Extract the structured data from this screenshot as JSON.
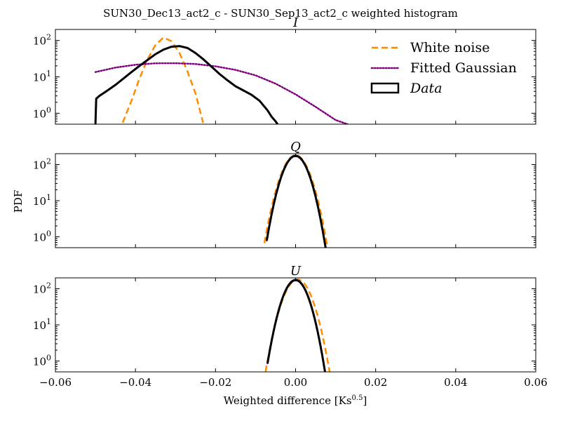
{
  "figure": {
    "suptitle": "SUN30_Dec13_act2_c - SUN30_Sep13_act2_c weighted histogram",
    "ylabel": "PDF",
    "xlabel_prefix": "Weighted difference [Ks",
    "xlabel_exp": "0.5",
    "xlabel_suffix": "]"
  },
  "legend": {
    "items": [
      {
        "label": "White noise",
        "style": "dashed",
        "color": "#ff8c00"
      },
      {
        "label": "Fitted Gaussian",
        "style": "dotted",
        "color": "#800080"
      },
      {
        "label": "Data",
        "style": "box",
        "color": "#000000"
      }
    ],
    "placement": "upper-right (top panel)"
  },
  "chart_data": [
    {
      "type": "line",
      "title": "I",
      "yscale": "log",
      "xlim": [
        -0.06,
        0.06
      ],
      "ylim": [
        0.5,
        200
      ],
      "x_ticks": [
        -0.06,
        -0.04,
        -0.02,
        0.0,
        0.02,
        0.04,
        0.06
      ],
      "x_tick_labels_shown": false,
      "y_ticks": [
        1,
        10,
        100
      ],
      "y_tick_labels": [
        "10^0",
        "10^1",
        "10^2"
      ],
      "series": [
        {
          "name": "White noise",
          "color": "#ff8c00",
          "dash": "dashed",
          "x": [
            -0.0432,
            -0.041,
            -0.039,
            -0.037,
            -0.035,
            -0.033,
            -0.031,
            -0.029,
            -0.027,
            -0.025,
            -0.0231
          ],
          "y": [
            0.55,
            2.2,
            9,
            30,
            75,
            120,
            95,
            45,
            14,
            3.5,
            0.55
          ]
        },
        {
          "name": "Fitted Gaussian",
          "color": "#800080",
          "dash": "dotted",
          "x": [
            -0.05,
            -0.045,
            -0.04,
            -0.035,
            -0.03,
            -0.025,
            -0.02,
            -0.015,
            -0.01,
            -0.005,
            0.0,
            0.005,
            0.01,
            0.013
          ],
          "y": [
            13.5,
            18,
            21.5,
            23.5,
            23.7,
            22.5,
            19.5,
            15.5,
            11,
            6.5,
            3.3,
            1.5,
            0.65,
            0.5
          ]
        },
        {
          "name": "Data",
          "color": "#000000",
          "dash": "solid",
          "x": [
            -0.05,
            -0.0498,
            -0.049,
            -0.047,
            -0.045,
            -0.043,
            -0.041,
            -0.039,
            -0.037,
            -0.035,
            -0.033,
            -0.031,
            -0.029,
            -0.027,
            -0.025,
            -0.023,
            -0.021,
            -0.019,
            -0.017,
            -0.015,
            -0.013,
            -0.011,
            -0.009,
            -0.007,
            -0.006,
            -0.005,
            -0.0045
          ],
          "y": [
            0.5,
            2.5,
            3.0,
            4.2,
            6.0,
            9.0,
            13.5,
            20,
            29,
            42,
            56,
            67,
            70,
            62,
            45,
            30,
            19,
            12,
            8,
            5.5,
            4.2,
            3.2,
            2.2,
            1.2,
            0.8,
            0.6,
            0.5
          ]
        }
      ]
    },
    {
      "type": "line",
      "title": "Q",
      "yscale": "log",
      "xlim": [
        -0.06,
        0.06
      ],
      "ylim": [
        0.5,
        200
      ],
      "x_ticks": [
        -0.06,
        -0.04,
        -0.02,
        0.0,
        0.02,
        0.04,
        0.06
      ],
      "x_tick_labels_shown": false,
      "y_ticks": [
        1,
        10,
        100
      ],
      "y_tick_labels": [
        "10^0",
        "10^1",
        "10^2"
      ],
      "series": [
        {
          "name": "White noise",
          "color": "#ff8c00",
          "dash": "dashed",
          "gauss_mu": 0.0,
          "gauss_peak": 180,
          "x_range": [
            -0.0078,
            0.0082
          ]
        },
        {
          "name": "Fitted Gaussian",
          "color": "#800080",
          "dash": "dotted",
          "gauss_mu": 0.0,
          "gauss_peak": 170,
          "x_range": [
            -0.0072,
            0.0078
          ]
        },
        {
          "name": "Data",
          "color": "#000000",
          "dash": "solid",
          "gauss_mu": 0.0,
          "gauss_peak": 175,
          "x_range": [
            -0.0072,
            0.0078
          ]
        }
      ]
    },
    {
      "type": "line",
      "title": "U",
      "yscale": "log",
      "xlim": [
        -0.06,
        0.06
      ],
      "ylim": [
        0.5,
        200
      ],
      "x_ticks": [
        -0.06,
        -0.04,
        -0.02,
        0.0,
        0.02,
        0.04,
        0.06
      ],
      "x_tick_labels": [
        "−0.06",
        "−0.04",
        "−0.02",
        "0.00",
        "0.02",
        "0.04",
        "0.06"
      ],
      "y_ticks": [
        1,
        10,
        100
      ],
      "y_tick_labels": [
        "10^0",
        "10^1",
        "10^2"
      ],
      "series": [
        {
          "name": "White noise",
          "color": "#ff8c00",
          "dash": "dashed",
          "gauss_mu": 0.0005,
          "gauss_peak": 180,
          "x_range": [
            -0.0075,
            0.0085
          ]
        },
        {
          "name": "Fitted Gaussian",
          "color": "#800080",
          "dash": "dotted",
          "gauss_mu": 0.0,
          "gauss_peak": 170,
          "x_range": [
            -0.007,
            0.0077
          ]
        },
        {
          "name": "Data",
          "color": "#000000",
          "dash": "solid",
          "gauss_mu": 0.0,
          "gauss_peak": 175,
          "x_range": [
            -0.007,
            0.0077
          ]
        }
      ]
    }
  ]
}
